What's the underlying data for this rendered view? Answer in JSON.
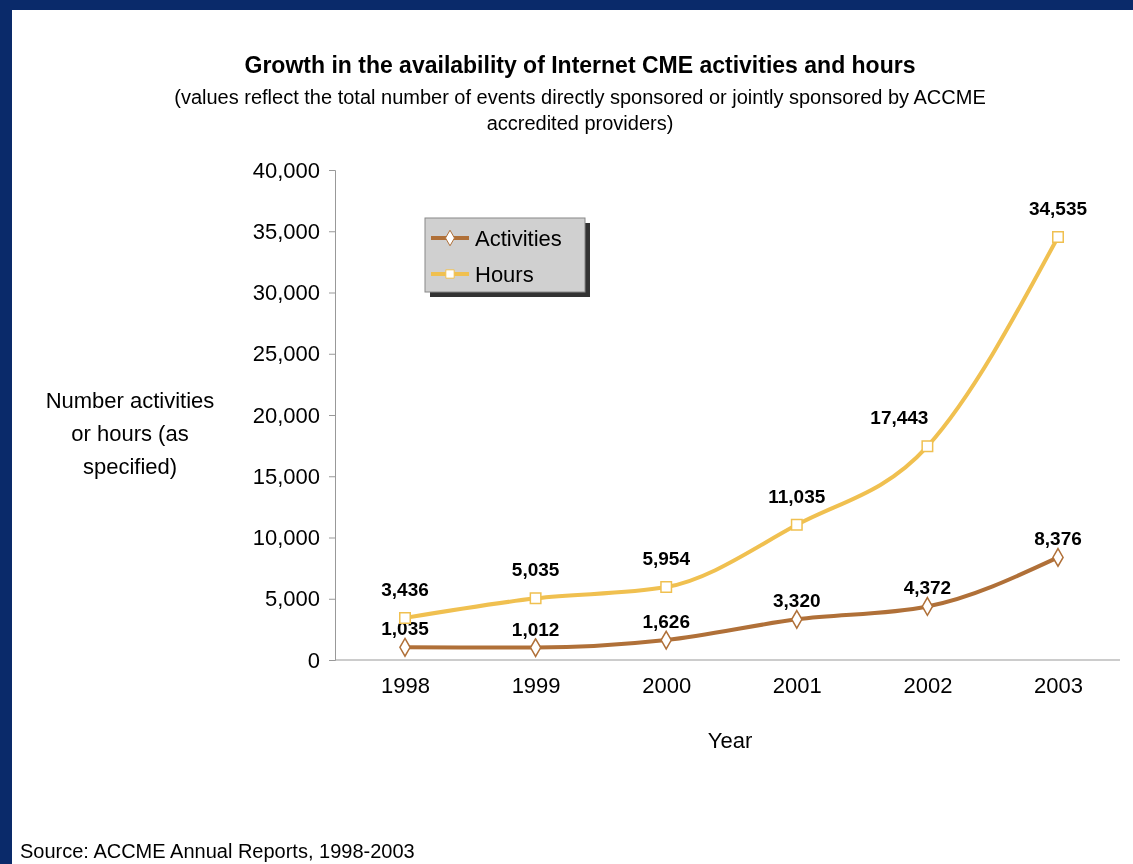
{
  "chart_data": {
    "type": "line",
    "title": "Growth in the availability of Internet CME activities and hours",
    "subtitle": "(values reflect the total number of events directly sponsored or jointly sponsored by ACCME accredited providers)",
    "xlabel": "Year",
    "ylabel": "Number activities or hours (as specified)",
    "annotations": [
      "Source: ACCME Annual Reports, 1998-2003"
    ],
    "categories": [
      "1998",
      "1999",
      "2000",
      "2001",
      "2002",
      "2003"
    ],
    "series": [
      {
        "name": "Activities",
        "color": "#b07038",
        "marker": "diamond",
        "values": [
          1035,
          1012,
          1626,
          3320,
          4372,
          8376
        ],
        "value_labels": [
          "1,035",
          "1,012",
          "1,626",
          "3,320",
          "4,372",
          "8,376"
        ]
      },
      {
        "name": "Hours",
        "color": "#f0c050",
        "marker": "square",
        "values": [
          3436,
          5035,
          5954,
          11035,
          17443,
          34535
        ],
        "value_labels": [
          "3,436",
          "5,035",
          "5,954",
          "11,035",
          "17,443",
          "34,535"
        ]
      }
    ],
    "ylim": [
      0,
      40000
    ],
    "yticks": [
      {
        "value": 0,
        "label": "0"
      },
      {
        "value": 5000,
        "label": "5,000"
      },
      {
        "value": 10000,
        "label": "10,000"
      },
      {
        "value": 15000,
        "label": "15,000"
      },
      {
        "value": 20000,
        "label": "20,000"
      },
      {
        "value": 25000,
        "label": "25,000"
      },
      {
        "value": 30000,
        "label": "30,000"
      },
      {
        "value": 35000,
        "label": "35,000"
      },
      {
        "value": 40000,
        "label": "40,000"
      }
    ],
    "legend": "top left",
    "grid": false,
    "line_style": "solid"
  }
}
